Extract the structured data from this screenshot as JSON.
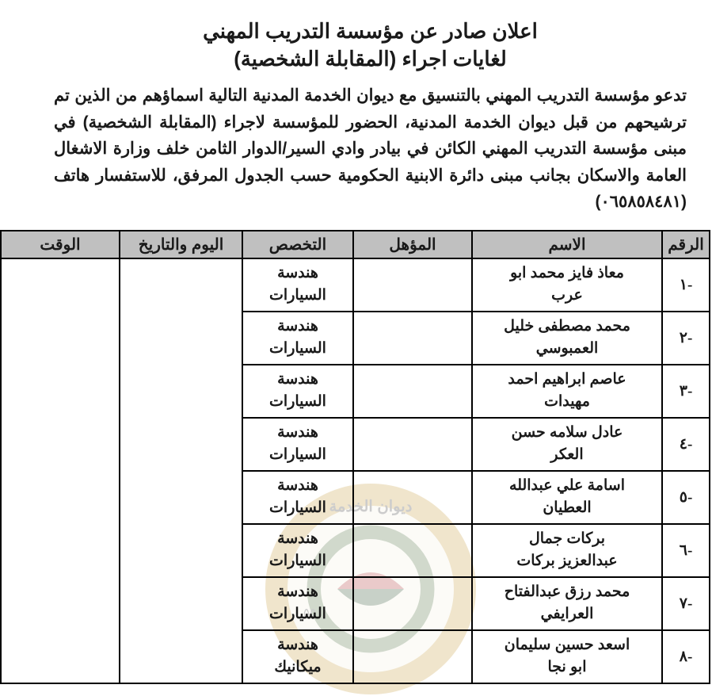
{
  "header": {
    "title_line1": "اعلان صادر عن مؤسسة التدريب المهني",
    "title_line2": "لغايات اجراء (المقابلة الشخصية)"
  },
  "body_text": "تدعو مؤسسة التدريب المهني بالتنسيق مع ديوان الخدمة المدنية التالية اسماؤهم من الذين تم ترشيحهم من قبل ديوان الخدمة المدنية، الحضور للمؤسسة لاجراء (المقابلة الشخصية) في مبنى مؤسسة التدريب المهني الكائن في بيادر وادي السير/الدوار الثامن خلف وزارة الاشغال العامة والاسكان بجانب مبنى دائرة الابنية الحكومية حسب الجدول المرفق، للاستفسار هاتف (٠٦٥٨٥٨٤٨١)",
  "table": {
    "columns": [
      "الرقم",
      "الاسم",
      "المؤهل",
      "التخصص",
      "اليوم والتاريخ",
      "الوقت"
    ],
    "rows": [
      {
        "num": "-١",
        "name_l1": "معاذ فايز محمد ابو",
        "name_l2": "عرب",
        "qual": "",
        "spec_l1": "هندسة",
        "spec_l2": "السيارات",
        "date": "",
        "time": ""
      },
      {
        "num": "-٢",
        "name_l1": "محمد مصطفى خليل",
        "name_l2": "العمبوسي",
        "qual": "",
        "spec_l1": "هندسة",
        "spec_l2": "السيارات",
        "date": "",
        "time": ""
      },
      {
        "num": "-٣",
        "name_l1": "عاصم ابراهيم احمد",
        "name_l2": "مهيدات",
        "qual": "",
        "spec_l1": "هندسة",
        "spec_l2": "السيارات",
        "date": "",
        "time": ""
      },
      {
        "num": "-٤",
        "name_l1": "عادل سلامه حسن",
        "name_l2": "العكر",
        "qual": "",
        "spec_l1": "هندسة",
        "spec_l2": "السيارات",
        "date": "",
        "time": ""
      },
      {
        "num": "-٥",
        "name_l1": "اسامة علي عبدالله",
        "name_l2": "العطيان",
        "qual": "",
        "spec_l1": "هندسة",
        "spec_l2": "السيارات",
        "date": "",
        "time": ""
      },
      {
        "num": "-٦",
        "name_l1": "بركات جمال",
        "name_l2": "عبدالعزيز بركات",
        "qual": "",
        "spec_l1": "هندسة",
        "spec_l2": "السيارات",
        "date": "",
        "time": ""
      },
      {
        "num": "-٧",
        "name_l1": "محمد رزق عبدالفتاح",
        "name_l2": "العرايفي",
        "qual": "",
        "spec_l1": "هندسة",
        "spec_l2": "السيارات",
        "date": "",
        "time": ""
      },
      {
        "num": "-٨",
        "name_l1": "اسعد حسين سليمان",
        "name_l2": "ابو نجا",
        "qual": "",
        "spec_l1": "هندسة",
        "spec_l2": "ميكانيك",
        "date": "",
        "time": ""
      }
    ]
  },
  "watermark": {
    "outer_ring": "#c49a3a",
    "inner_ring": "#4a6b3a",
    "center_top": "#b03030",
    "center_bottom": "#2a4a2a",
    "text_color": "#3a3a3a"
  }
}
